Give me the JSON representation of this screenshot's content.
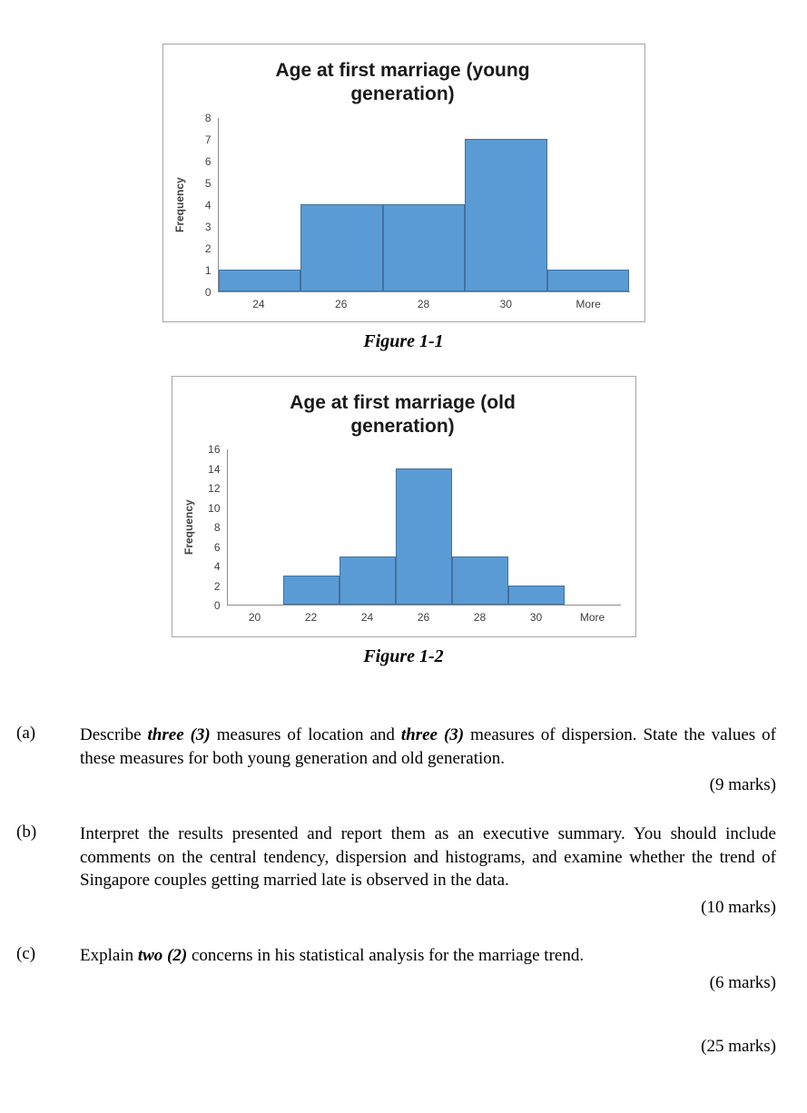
{
  "chart_data": [
    {
      "type": "bar",
      "title": "Age at first marriage (young generation)",
      "title_lines": [
        "Age at first marriage (young",
        "generation)"
      ],
      "ylabel": "Frequency",
      "categories": [
        "24",
        "26",
        "28",
        "30",
        "More"
      ],
      "values": [
        1,
        4,
        4,
        7,
        1
      ],
      "ylim": [
        0,
        8
      ],
      "ytick_step": 1,
      "grid": "off",
      "legend": "none",
      "bar_fill": "#5b9bd5",
      "bar_border": "#41719c",
      "caption": "Figure 1-1"
    },
    {
      "type": "bar",
      "title": "Age at first marriage (old generation)",
      "title_lines": [
        "Age at first marriage (old",
        "generation)"
      ],
      "ylabel": "Frequency",
      "categories": [
        "20",
        "22",
        "24",
        "26",
        "28",
        "30",
        "More"
      ],
      "values": [
        0,
        3,
        5,
        14,
        5,
        2,
        0
      ],
      "ylim": [
        0,
        16
      ],
      "ytick_step": 2,
      "grid": "off",
      "legend": "none",
      "bar_fill": "#5b9bd5",
      "bar_border": "#41719c",
      "caption": "Figure 1-2"
    }
  ],
  "questions": [
    {
      "label": "(a)",
      "runs": [
        {
          "text": "Describe "
        },
        {
          "text": "three (3)",
          "style": "bi"
        },
        {
          "text": " measures of location and "
        },
        {
          "text": "three (3)",
          "style": "bi"
        },
        {
          "text": " measures of dispersion. State the values of these measures for both young generation and old generation."
        }
      ],
      "marks": "(9 marks)"
    },
    {
      "label": "(b)",
      "runs": [
        {
          "text": "Interpret the results presented and report them as an executive summary. You should include comments on the central tendency, dispersion and histograms, and examine whether the trend of Singapore couples getting married late is observed in the data."
        }
      ],
      "marks": "(10 marks)"
    },
    {
      "label": "(c)",
      "runs": [
        {
          "text": "Explain "
        },
        {
          "text": "two (2)",
          "style": "bi"
        },
        {
          "text": " concerns in his statistical analysis for the marriage trend."
        }
      ],
      "marks": "(6 marks)"
    }
  ],
  "total_marks": "(25 marks)"
}
